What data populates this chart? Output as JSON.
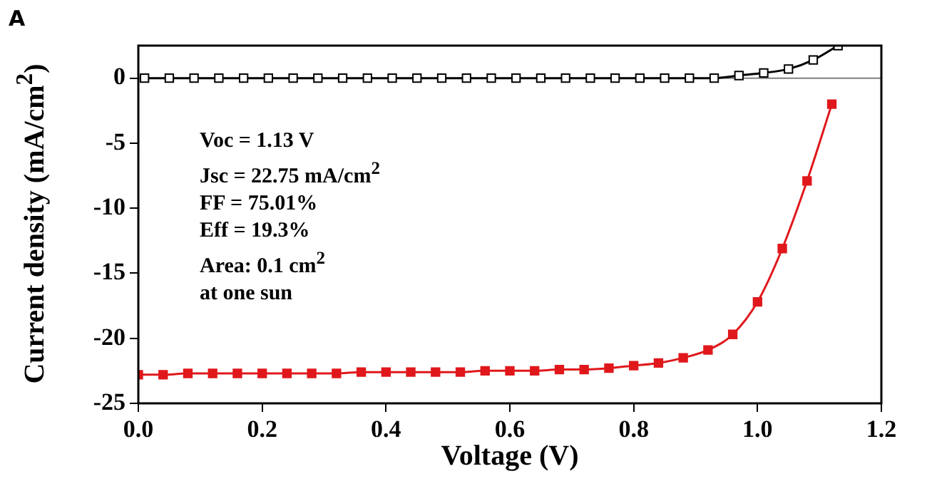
{
  "chart_data": {
    "type": "line",
    "xlabel": "Voltage (V)",
    "ylabel": "Current density (mA/cm$^{2}$)",
    "annotations": [
      "A",
      "Voc = 1.13 V",
      "Jsc = 22.75 mA/cm$^{2}$",
      "FF = 75.01%",
      "Eff = 19.3%",
      "Area: 0.1 cm$^{2}$",
      "at one sun"
    ],
    "series": [
      {
        "color": "#000000",
        "x": [
          0.01,
          0.05,
          0.09,
          0.13,
          0.17,
          0.21,
          0.25,
          0.29,
          0.33,
          0.37,
          0.41,
          0.45,
          0.49,
          0.53,
          0.57,
          0.61,
          0.65,
          0.69,
          0.73,
          0.77,
          0.81,
          0.85,
          0.89,
          0.93,
          0.97,
          1.01,
          1.05,
          1.09,
          1.13
        ],
        "values": [
          0,
          0,
          0,
          0,
          0,
          0,
          0,
          0,
          0,
          0,
          0,
          0,
          0,
          0,
          0,
          0,
          0,
          0,
          0,
          0,
          0,
          0,
          0,
          0,
          0.2,
          0.4,
          0.7,
          1.4,
          2.5
        ]
      },
      {
        "color": "#e0181c",
        "x": [
          0,
          0.04,
          0.08,
          0.12,
          0.16,
          0.2,
          0.24,
          0.28,
          0.32,
          0.36,
          0.4,
          0.44,
          0.48,
          0.52,
          0.56,
          0.6,
          0.64,
          0.68,
          0.72,
          0.76,
          0.8,
          0.84,
          0.88,
          0.92,
          0.96,
          1.0,
          1.04,
          1.08,
          1.12
        ],
        "values": [
          -22.8,
          -22.8,
          -22.7,
          -22.7,
          -22.7,
          -22.7,
          -22.7,
          -22.7,
          -22.7,
          -22.6,
          -22.6,
          -22.6,
          -22.6,
          -22.6,
          -22.5,
          -22.5,
          -22.5,
          -22.4,
          -22.4,
          -22.3,
          -22.1,
          -21.9,
          -21.5,
          -20.9,
          -19.7,
          -17.2,
          -13.1,
          -7.9,
          -2.0
        ]
      }
    ],
    "xlim": [
      0,
      1.2
    ],
    "xticks": [
      {
        "value": 0,
        "label": "0.0"
      },
      0.2,
      0.4,
      0.6,
      0.8,
      {
        "value": 1,
        "label": "1.0"
      },
      1.2
    ],
    "ylim": [
      -25,
      2.5
    ],
    "yticks": [
      -25,
      -20,
      -15,
      -10,
      -5,
      0
    ],
    "ref_lines": [
      {
        "axis": "y",
        "value": 0,
        "color": "#808080"
      }
    ],
    "marker": "square",
    "line_style": "solid",
    "grid": false,
    "legend": false
  }
}
